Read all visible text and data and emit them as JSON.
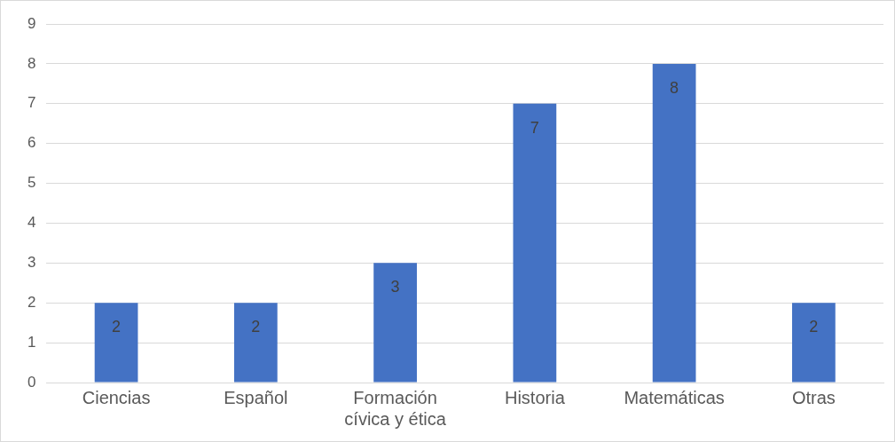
{
  "chart_data": {
    "type": "bar",
    "categories": [
      "Ciencias",
      "Español",
      "Formación cívica y ética",
      "Historia",
      "Matemáticas",
      "Otras"
    ],
    "values": [
      2,
      2,
      3,
      7,
      8,
      2
    ],
    "color": "#4472c4",
    "ylim": [
      0,
      9
    ],
    "yticks": [
      0,
      1,
      2,
      3,
      4,
      5,
      6,
      7,
      8,
      9
    ],
    "grid": "y",
    "legend": false,
    "data_labels": true
  }
}
